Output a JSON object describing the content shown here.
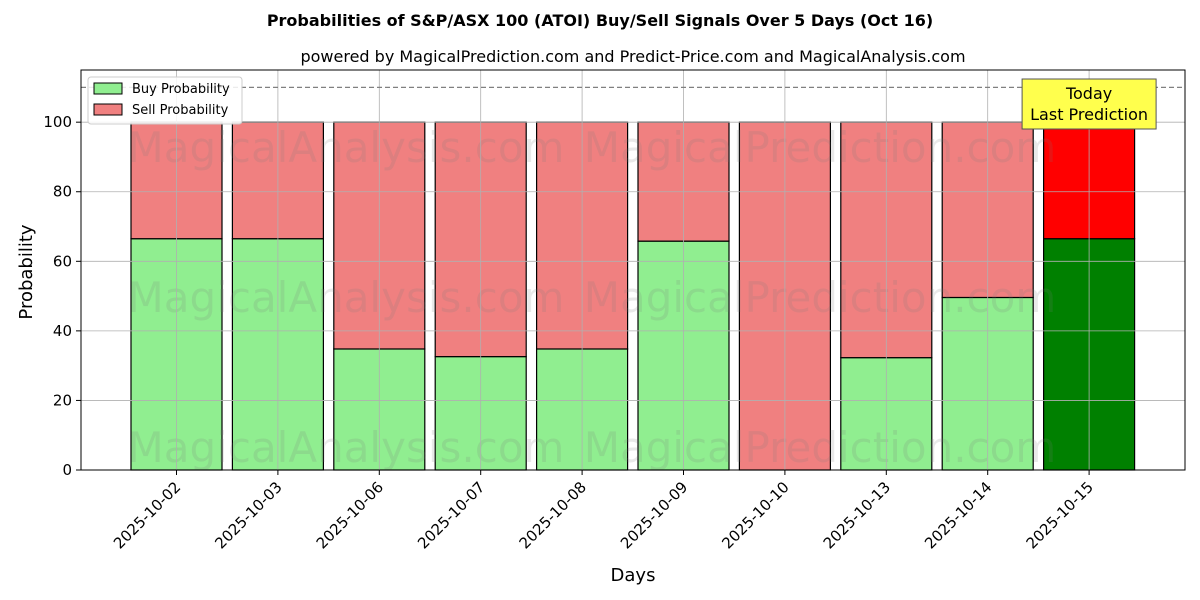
{
  "chart_data": {
    "type": "bar",
    "stacked": true,
    "title": "Probabilities of S&P/ASX 100 (ATOI) Buy/Sell Signals Over 5 Days (Oct 16)",
    "subtitle": "powered by MagicalPrediction.com and Predict-Price.com and MagicalAnalysis.com",
    "xlabel": "Days",
    "ylabel": "Probability",
    "ylim": [
      0,
      115
    ],
    "yticks": [
      0,
      20,
      40,
      60,
      80,
      100
    ],
    "reference_line": 110,
    "grid": true,
    "legend_position": "top-left",
    "categories": [
      "2025-10-02",
      "2025-10-03",
      "2025-10-06",
      "2025-10-07",
      "2025-10-08",
      "2025-10-09",
      "2025-10-10",
      "2025-10-13",
      "2025-10-14",
      "2025-10-15"
    ],
    "series": [
      {
        "name": "Buy Probability",
        "color": "#90ee90",
        "highlight_color": "#008000",
        "values": [
          66.5,
          66.5,
          34.8,
          32.6,
          34.8,
          65.8,
          0,
          32.3,
          49.6,
          66.5
        ]
      },
      {
        "name": "Sell Probability",
        "color": "#f08080",
        "highlight_color": "#ff0000",
        "values": [
          33.5,
          33.5,
          65.2,
          67.4,
          65.2,
          34.2,
          100,
          67.7,
          50.4,
          33.5
        ]
      }
    ],
    "highlight_index": 9,
    "annotation": {
      "lines": [
        "Today",
        "Last Prediction"
      ],
      "background": "#ffff4d"
    },
    "watermarks": [
      "MagicalAnalysis.com",
      "MagicalPrediction.com"
    ]
  }
}
